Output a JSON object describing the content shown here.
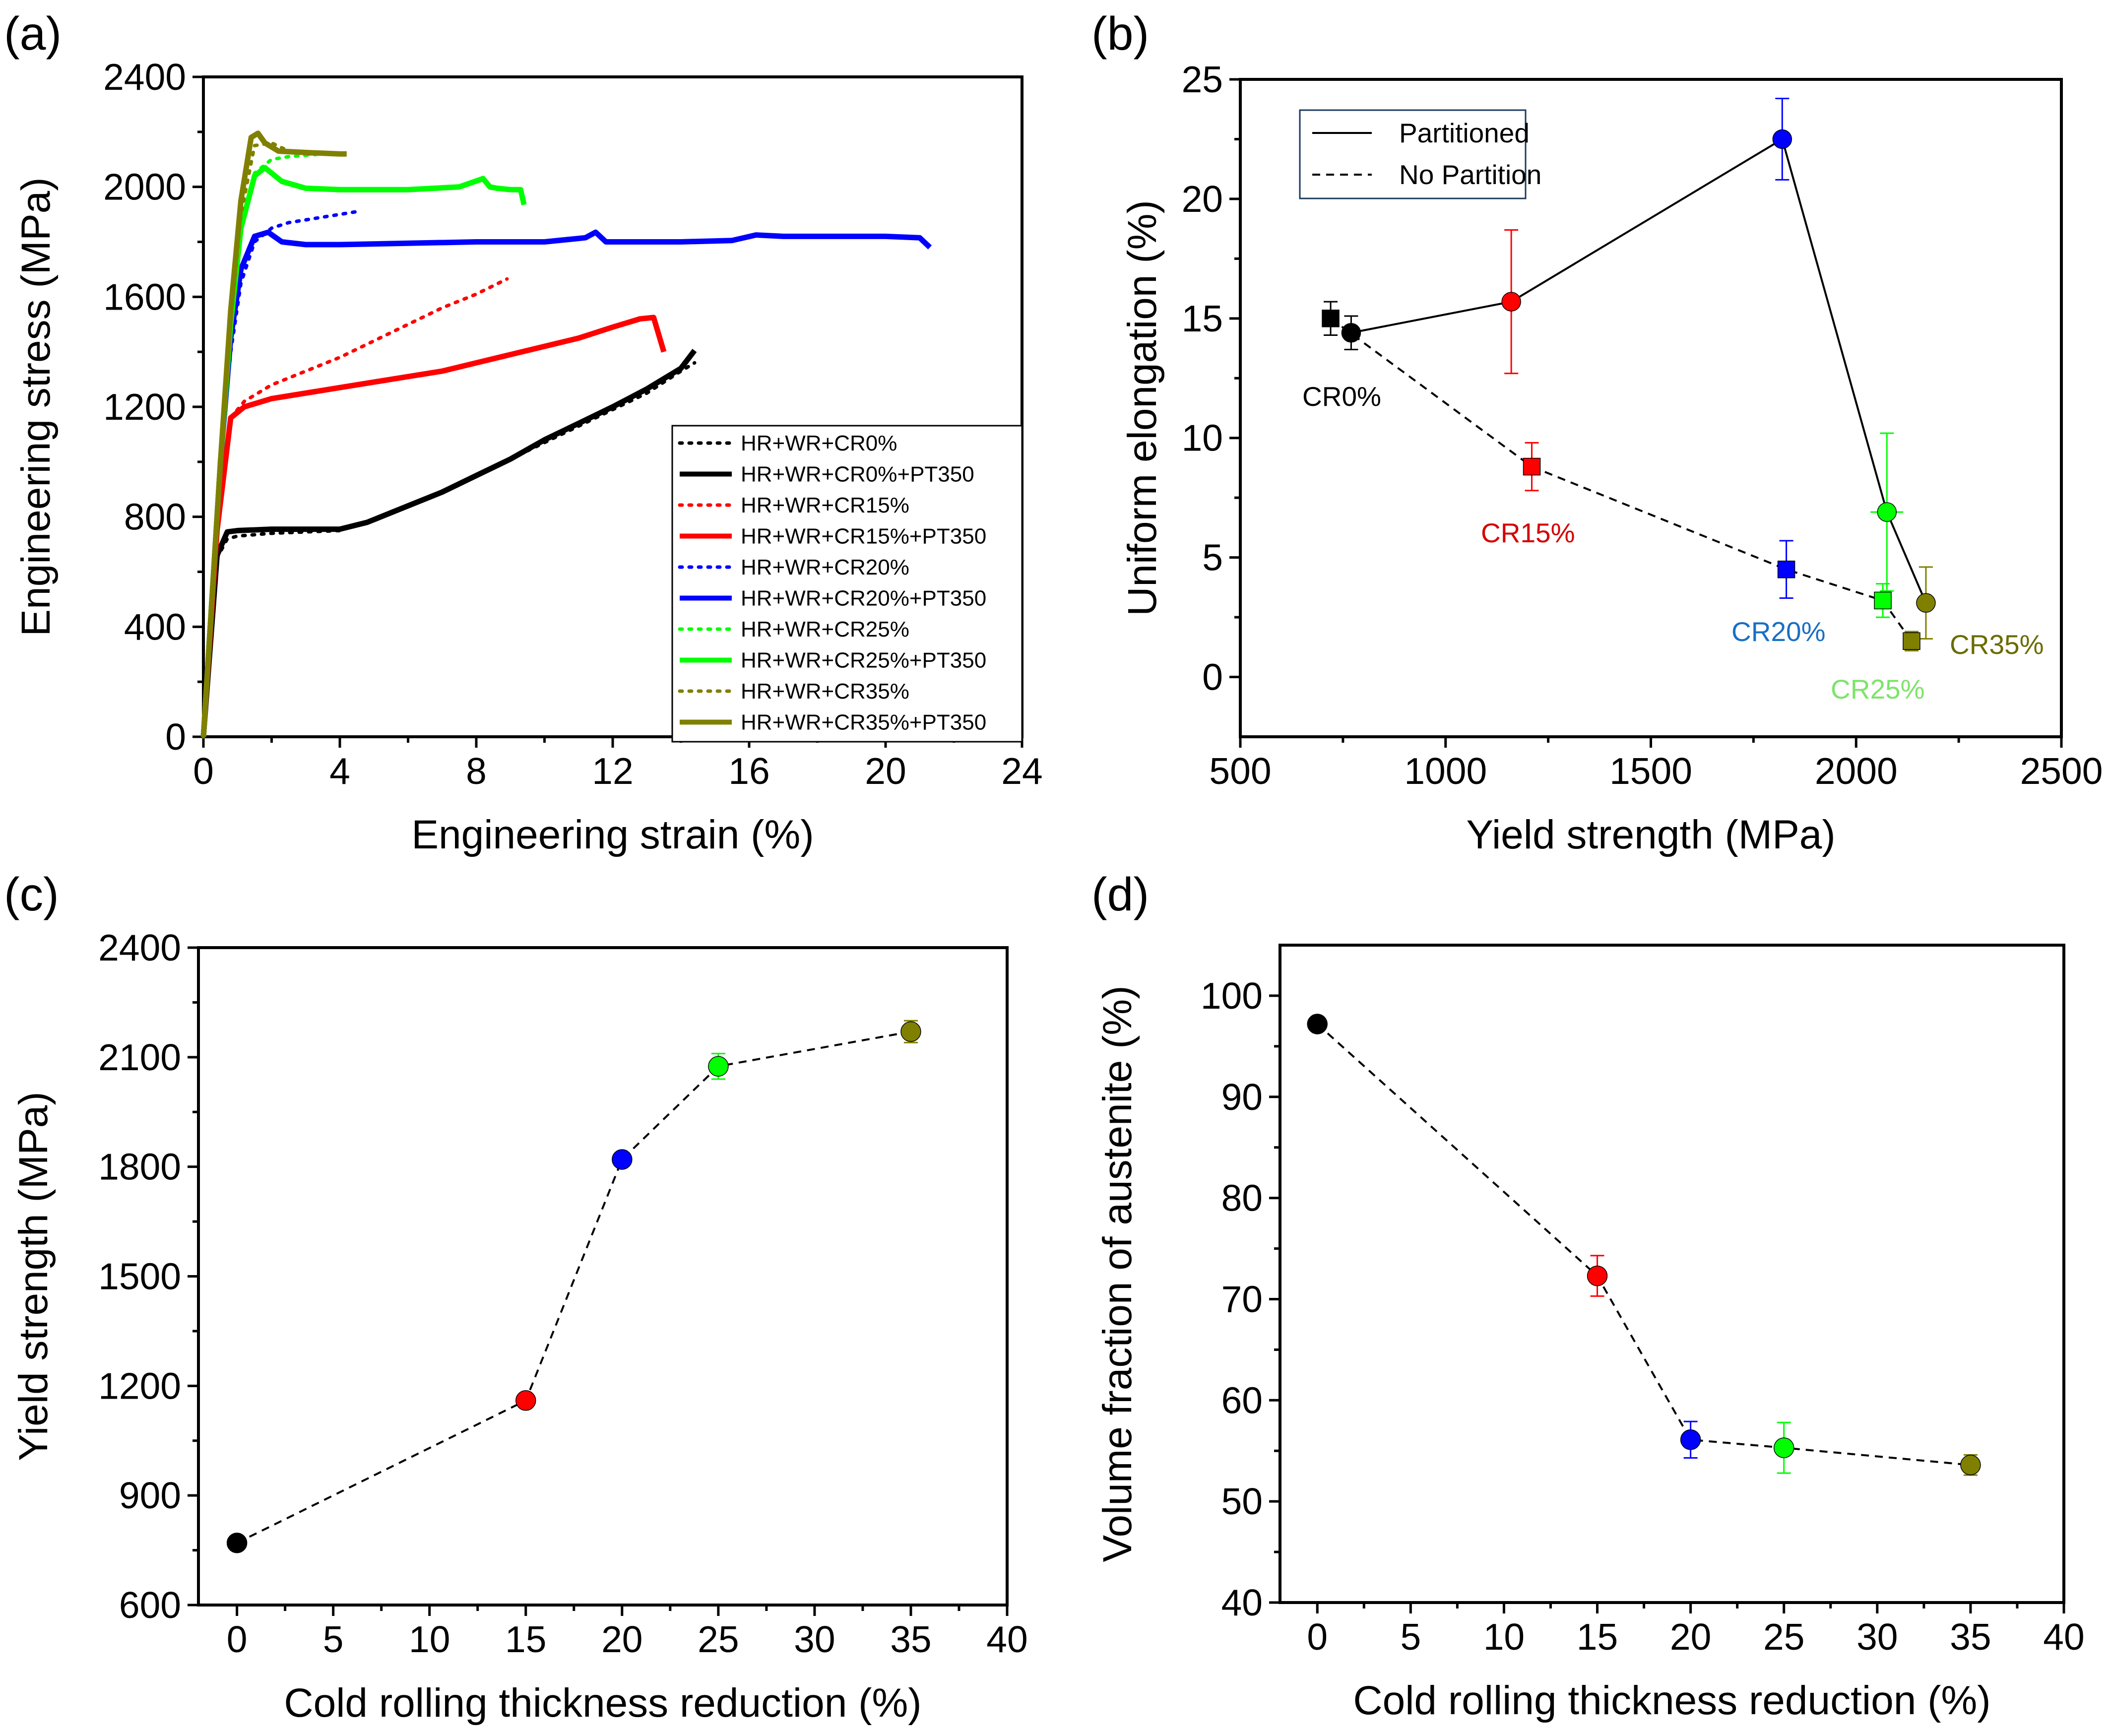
{
  "figure": {
    "panels": [
      "(a)",
      "(b)",
      "(c)",
      "(d)"
    ]
  },
  "chart_data": [
    {
      "panel": "(a)",
      "type": "line",
      "xlabel": "Engineering strain (%)",
      "ylabel": "Engineering stress (MPa)",
      "xlim": [
        0,
        24
      ],
      "ylim": [
        0,
        2400
      ],
      "xticks": [
        "0",
        "4",
        "8",
        "12",
        "16",
        "20",
        "24"
      ],
      "yticks": [
        "0",
        "400",
        "800",
        "1200",
        "1600",
        "2000",
        "2400"
      ],
      "legend_position": "bottom-right",
      "series": [
        {
          "name": "HR+WR+CR0%",
          "color": "#000000",
          "style": "dotted",
          "x": [
            0,
            0.4,
            0.7,
            1.0,
            2.0,
            3.0,
            4.0,
            5.0,
            6.0,
            7.0,
            8.0,
            9.0,
            10.0,
            11.0,
            12.0,
            13.0,
            14.0,
            14.4
          ],
          "y": [
            0,
            650,
            720,
            730,
            740,
            745,
            750,
            790,
            840,
            890,
            950,
            1010,
            1070,
            1130,
            1190,
            1250,
            1330,
            1360
          ]
        },
        {
          "name": "HR+WR+CR0%+PT350",
          "color": "#000000",
          "style": "solid",
          "x": [
            0,
            0.4,
            0.7,
            1.0,
            2.0,
            3.0,
            4.0,
            4.8,
            6.0,
            7.0,
            8.0,
            9.0,
            10.0,
            11.0,
            12.0,
            13.0,
            14.0,
            14.4
          ],
          "y": [
            0,
            660,
            745,
            750,
            755,
            755,
            755,
            780,
            840,
            890,
            950,
            1010,
            1080,
            1140,
            1200,
            1265,
            1340,
            1405
          ]
        },
        {
          "name": "HR+WR+CR15%",
          "color": "#ff0000",
          "style": "dotted",
          "x": [
            0,
            0.4,
            0.8,
            1.2,
            2.0,
            3.0,
            4.0,
            5.0,
            6.0,
            7.0,
            8.0,
            8.9
          ],
          "y": [
            0,
            800,
            1160,
            1220,
            1280,
            1330,
            1380,
            1440,
            1500,
            1560,
            1610,
            1665
          ]
        },
        {
          "name": "HR+WR+CR15%+PT350",
          "color": "#ff0000",
          "style": "solid",
          "x": [
            0,
            0.4,
            0.8,
            1.2,
            2.0,
            3.0,
            4.0,
            5.0,
            6.0,
            7.0,
            8.0,
            9.0,
            10.0,
            11.0,
            12.0,
            12.8,
            13.2,
            13.5
          ],
          "y": [
            0,
            750,
            1160,
            1200,
            1230,
            1250,
            1270,
            1290,
            1310,
            1330,
            1360,
            1390,
            1420,
            1450,
            1490,
            1520,
            1525,
            1400
          ]
        },
        {
          "name": "HR+WR+CR20%",
          "color": "#0000ff",
          "style": "dotted",
          "x": [
            0,
            0.5,
            0.8,
            1.1,
            1.5,
            2.0,
            2.5,
            3.0,
            3.5,
            4.0,
            4.5
          ],
          "y": [
            0,
            1000,
            1400,
            1650,
            1800,
            1850,
            1870,
            1880,
            1890,
            1900,
            1910
          ]
        },
        {
          "name": "HR+WR+CR20%+PT350",
          "color": "#0000ff",
          "style": "solid",
          "x": [
            0,
            0.5,
            0.8,
            1.1,
            1.5,
            1.9,
            2.3,
            3.0,
            4.0,
            6.0,
            8.0,
            10.0,
            11.2,
            11.5,
            11.8,
            14.0,
            15.5,
            16.2,
            17.0,
            20.0,
            21.0,
            21.3
          ],
          "y": [
            0,
            1000,
            1450,
            1700,
            1820,
            1835,
            1800,
            1790,
            1790,
            1795,
            1800,
            1800,
            1815,
            1835,
            1800,
            1800,
            1805,
            1825,
            1820,
            1820,
            1815,
            1780
          ]
        },
        {
          "name": "HR+WR+CR25%",
          "color": "#00ff00",
          "style": "dotted",
          "x": [
            0,
            0.5,
            0.8,
            1.1,
            1.5,
            2.0,
            2.5,
            3.0,
            3.5
          ],
          "y": [
            0,
            1000,
            1500,
            1850,
            2050,
            2100,
            2110,
            2115,
            2120
          ]
        },
        {
          "name": "HR+WR+CR25%+PT350",
          "color": "#00ff00",
          "style": "solid",
          "x": [
            0,
            0.5,
            0.8,
            1.1,
            1.5,
            1.8,
            2.3,
            3.0,
            4.0,
            6.0,
            7.5,
            8.2,
            8.4,
            8.6,
            9.0,
            9.3,
            9.4
          ],
          "y": [
            0,
            1000,
            1500,
            1850,
            2040,
            2070,
            2020,
            1995,
            1990,
            1990,
            2000,
            2030,
            2000,
            1995,
            1990,
            1990,
            1935
          ]
        },
        {
          "name": "HR+WR+CR35%",
          "color": "#808000",
          "style": "dotted",
          "x": [
            0,
            0.5,
            0.8,
            1.1,
            1.5,
            2.0,
            2.5,
            3.0,
            3.5,
            4.0
          ],
          "y": [
            0,
            1000,
            1500,
            1900,
            2150,
            2160,
            2130,
            2120,
            2120,
            2120
          ]
        },
        {
          "name": "HR+WR+CR35%+PT350",
          "color": "#808000",
          "style": "solid",
          "x": [
            0,
            0.5,
            0.8,
            1.1,
            1.4,
            1.6,
            1.8,
            2.2,
            3.0,
            4.0,
            4.2
          ],
          "y": [
            0,
            1000,
            1550,
            1950,
            2180,
            2195,
            2160,
            2130,
            2125,
            2120,
            2120
          ]
        }
      ]
    },
    {
      "panel": "(b)",
      "type": "line",
      "xlabel": "Yield strength (MPa)",
      "ylabel": "Uniform elongation (%)",
      "xlim": [
        500,
        2500
      ],
      "ylim": [
        -2.5,
        25
      ],
      "xticks": [
        "500",
        "1000",
        "1500",
        "2000",
        "2500"
      ],
      "yticks": [
        "0",
        "5",
        "10",
        "15",
        "20",
        "25"
      ],
      "legend_position": "top-left",
      "legend": [
        {
          "label": "Partitioned",
          "style": "solid"
        },
        {
          "label": "No Partition",
          "style": "dashed"
        }
      ],
      "series": [
        {
          "name": "Partitioned",
          "marker": "circle",
          "style": "solid",
          "points": [
            {
              "label": "CR0%",
              "x": 770,
              "y": 14.4,
              "yerr": 0.7,
              "color": "#000000"
            },
            {
              "label": "CR15%",
              "x": 1160,
              "y": 15.7,
              "yerr": 3.0,
              "color": "#ff0000"
            },
            {
              "label": "CR20%",
              "x": 1820,
              "y": 22.5,
              "yerr": 1.7,
              "color": "#0000ff"
            },
            {
              "label": "CR25%",
              "x": 2075,
              "y": 6.9,
              "yerr": 3.3,
              "xerr": 40,
              "color": "#00ff00"
            },
            {
              "label": "CR35%",
              "x": 2170,
              "y": 3.1,
              "yerr": 1.5,
              "color": "#808000"
            }
          ]
        },
        {
          "name": "No Partition",
          "marker": "square",
          "style": "dashed",
          "points": [
            {
              "label": "CR0%",
              "x": 720,
              "y": 15.0,
              "yerr": 0.7,
              "color": "#000000"
            },
            {
              "label": "CR15%",
              "x": 1210,
              "y": 8.8,
              "yerr": 1.0,
              "color": "#ff0000"
            },
            {
              "label": "CR20%",
              "x": 1830,
              "y": 4.5,
              "yerr": 1.2,
              "color": "#0000ff"
            },
            {
              "label": "CR25%",
              "x": 2065,
              "y": 3.2,
              "yerr": 0.7,
              "color": "#00ff00"
            },
            {
              "label": "CR35%",
              "x": 2135,
              "y": 1.5,
              "yerr": 0.4,
              "color": "#808000"
            }
          ]
        }
      ],
      "annotations": [
        {
          "text": "CR0%",
          "color": "#000000"
        },
        {
          "text": "CR15%",
          "color": "#d40000"
        },
        {
          "text": "CR20%",
          "color": "#1a6fc4"
        },
        {
          "text": "CR25%",
          "color": "#7ee36a"
        },
        {
          "text": "CR35%",
          "color": "#6b6b00"
        }
      ]
    },
    {
      "panel": "(c)",
      "type": "scatter",
      "xlabel": "Cold rolling thickness reduction (%)",
      "ylabel": "Yield strength (MPa)",
      "xlim": [
        -2,
        40
      ],
      "ylim": [
        600,
        2400
      ],
      "xticks": [
        "0",
        "5",
        "10",
        "15",
        "20",
        "25",
        "30",
        "35",
        "40"
      ],
      "yticks": [
        "600",
        "900",
        "1200",
        "1500",
        "1800",
        "2100",
        "2400"
      ],
      "points": [
        {
          "x": 0,
          "y": 770,
          "yerr": 10,
          "color": "#000000"
        },
        {
          "x": 15,
          "y": 1160,
          "yerr": 15,
          "color": "#ff0000"
        },
        {
          "x": 20,
          "y": 1820,
          "yerr": 15,
          "color": "#0000ff"
        },
        {
          "x": 25,
          "y": 2075,
          "yerr": 35,
          "color": "#00ff00"
        },
        {
          "x": 35,
          "y": 2170,
          "yerr": 30,
          "color": "#808000"
        }
      ]
    },
    {
      "panel": "(d)",
      "type": "scatter",
      "xlabel": "Cold rolling thickness reduction (%)",
      "ylabel": "Volume fraction of austenite (%)",
      "xlim": [
        -2,
        40
      ],
      "ylim": [
        40,
        105
      ],
      "xticks": [
        "0",
        "5",
        "10",
        "15",
        "20",
        "25",
        "30",
        "35",
        "40"
      ],
      "yticks": [
        "40",
        "50",
        "60",
        "70",
        "80",
        "90",
        "100"
      ],
      "points": [
        {
          "x": 0,
          "y": 97.2,
          "yerr": 0.5,
          "color": "#000000"
        },
        {
          "x": 15,
          "y": 72.3,
          "yerr": 2.0,
          "color": "#ff0000"
        },
        {
          "x": 20,
          "y": 56.1,
          "yerr": 1.8,
          "color": "#0000ff"
        },
        {
          "x": 25,
          "y": 55.3,
          "yerr": 2.5,
          "color": "#00ff00"
        },
        {
          "x": 35,
          "y": 53.6,
          "yerr": 1.0,
          "color": "#808000"
        }
      ]
    }
  ]
}
